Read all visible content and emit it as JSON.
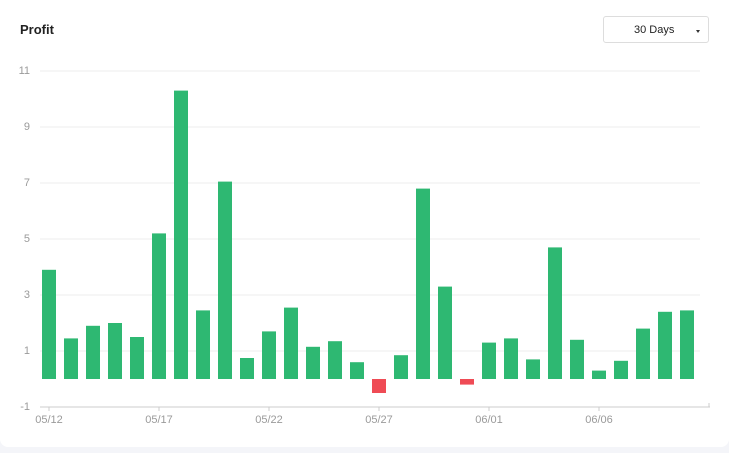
{
  "chart_data": {
    "type": "bar",
    "title": "Profit",
    "categories": [
      "05/12",
      null,
      null,
      null,
      null,
      "05/17",
      null,
      null,
      null,
      null,
      "05/22",
      null,
      null,
      null,
      null,
      "05/27",
      null,
      null,
      null,
      null,
      "06/01",
      null,
      null,
      null,
      null,
      "06/06",
      null,
      null,
      null,
      null
    ],
    "values": [
      3.9,
      1.45,
      1.9,
      2.0,
      1.5,
      5.2,
      10.3,
      2.45,
      7.05,
      0.75,
      1.7,
      2.55,
      1.15,
      1.35,
      0.6,
      -0.5,
      0.85,
      6.8,
      3.3,
      -0.2,
      1.3,
      1.45,
      0.7,
      4.7,
      1.4,
      0.3,
      0.65,
      1.8,
      2.4,
      2.45
    ],
    "color": "#2eb872",
    "negative_color": "#ef4b55",
    "ylim": [
      -1,
      11
    ],
    "yticks": [
      -1,
      1,
      3,
      5,
      7,
      9,
      11
    ],
    "grid": true
  },
  "controls": {
    "range": "30 Days"
  }
}
